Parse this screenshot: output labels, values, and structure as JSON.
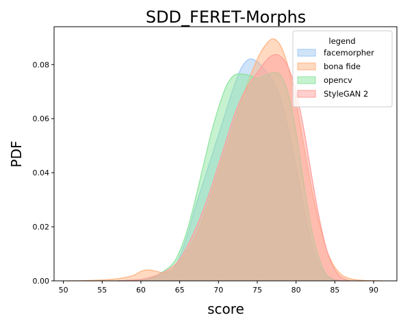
{
  "chart_data": {
    "type": "area",
    "title": "SDD_FERET-Morphs",
    "xlabel": "score",
    "ylabel": "PDF",
    "xlim": [
      48.8,
      93.0
    ],
    "ylim": [
      0,
      0.094
    ],
    "xticks": [
      50,
      55,
      60,
      65,
      70,
      75,
      80,
      85,
      90
    ],
    "yticks": [
      0.0,
      0.02,
      0.04,
      0.06,
      0.08
    ],
    "ytick_labels": [
      "0.00",
      "0.02",
      "0.04",
      "0.06",
      "0.08"
    ],
    "grid": false,
    "legend": {
      "title": "legend",
      "placement": "top-right"
    },
    "series": [
      {
        "name": "facemorpher",
        "color": "#a1c9f4",
        "x": [
          57,
          60,
          62,
          64,
          65,
          66,
          67,
          68,
          69,
          70,
          71,
          72,
          73,
          74,
          75,
          76,
          77,
          78,
          79,
          80,
          81,
          82,
          83,
          84,
          85,
          86
        ],
        "y": [
          0.0,
          0.0005,
          0.0015,
          0.004,
          0.009,
          0.017,
          0.027,
          0.036,
          0.045,
          0.054,
          0.063,
          0.072,
          0.079,
          0.082,
          0.081,
          0.078,
          0.074,
          0.067,
          0.056,
          0.042,
          0.027,
          0.014,
          0.006,
          0.002,
          0.0005,
          0.0
        ]
      },
      {
        "name": "bona fide",
        "color": "#ffb482",
        "x": [
          50.5,
          54,
          57,
          59,
          60,
          61,
          62,
          63,
          64,
          65,
          66,
          67,
          68,
          69,
          70,
          71,
          72,
          73,
          74,
          75,
          76,
          77,
          78,
          79,
          80,
          81,
          82,
          83,
          84,
          85,
          86,
          87,
          88,
          89,
          90,
          91
        ],
        "y": [
          0.0,
          0.0002,
          0.0008,
          0.002,
          0.0035,
          0.004,
          0.0035,
          0.003,
          0.004,
          0.007,
          0.011,
          0.016,
          0.023,
          0.031,
          0.04,
          0.049,
          0.058,
          0.067,
          0.075,
          0.082,
          0.087,
          0.0895,
          0.087,
          0.079,
          0.066,
          0.05,
          0.034,
          0.021,
          0.011,
          0.005,
          0.002,
          0.0008,
          0.0003,
          0.0001,
          5e-05,
          0.0
        ]
      },
      {
        "name": "opencv",
        "color": "#8de5a1",
        "x": [
          58,
          60,
          62,
          64,
          65,
          66,
          67,
          68,
          69,
          70,
          71,
          72,
          73,
          74,
          75,
          76,
          77,
          78,
          79,
          80,
          81,
          82,
          83,
          84,
          85
        ],
        "y": [
          0.0,
          0.0005,
          0.002,
          0.006,
          0.011,
          0.019,
          0.03,
          0.042,
          0.054,
          0.064,
          0.072,
          0.076,
          0.0765,
          0.076,
          0.075,
          0.076,
          0.077,
          0.076,
          0.069,
          0.055,
          0.036,
          0.019,
          0.008,
          0.002,
          0.0
        ]
      },
      {
        "name": "StyleGAN 2",
        "color": "#ff9f9b",
        "x": [
          57,
          60,
          62,
          64,
          65,
          66,
          67,
          68,
          69,
          70,
          71,
          72,
          73,
          74,
          75,
          76,
          77,
          78,
          79,
          80,
          81,
          82,
          83,
          84,
          85,
          86,
          87
        ],
        "y": [
          0.0,
          0.0005,
          0.002,
          0.005,
          0.008,
          0.013,
          0.019,
          0.026,
          0.034,
          0.043,
          0.052,
          0.061,
          0.068,
          0.073,
          0.077,
          0.081,
          0.0835,
          0.083,
          0.079,
          0.07,
          0.056,
          0.039,
          0.023,
          0.011,
          0.004,
          0.001,
          0.0
        ]
      }
    ]
  }
}
